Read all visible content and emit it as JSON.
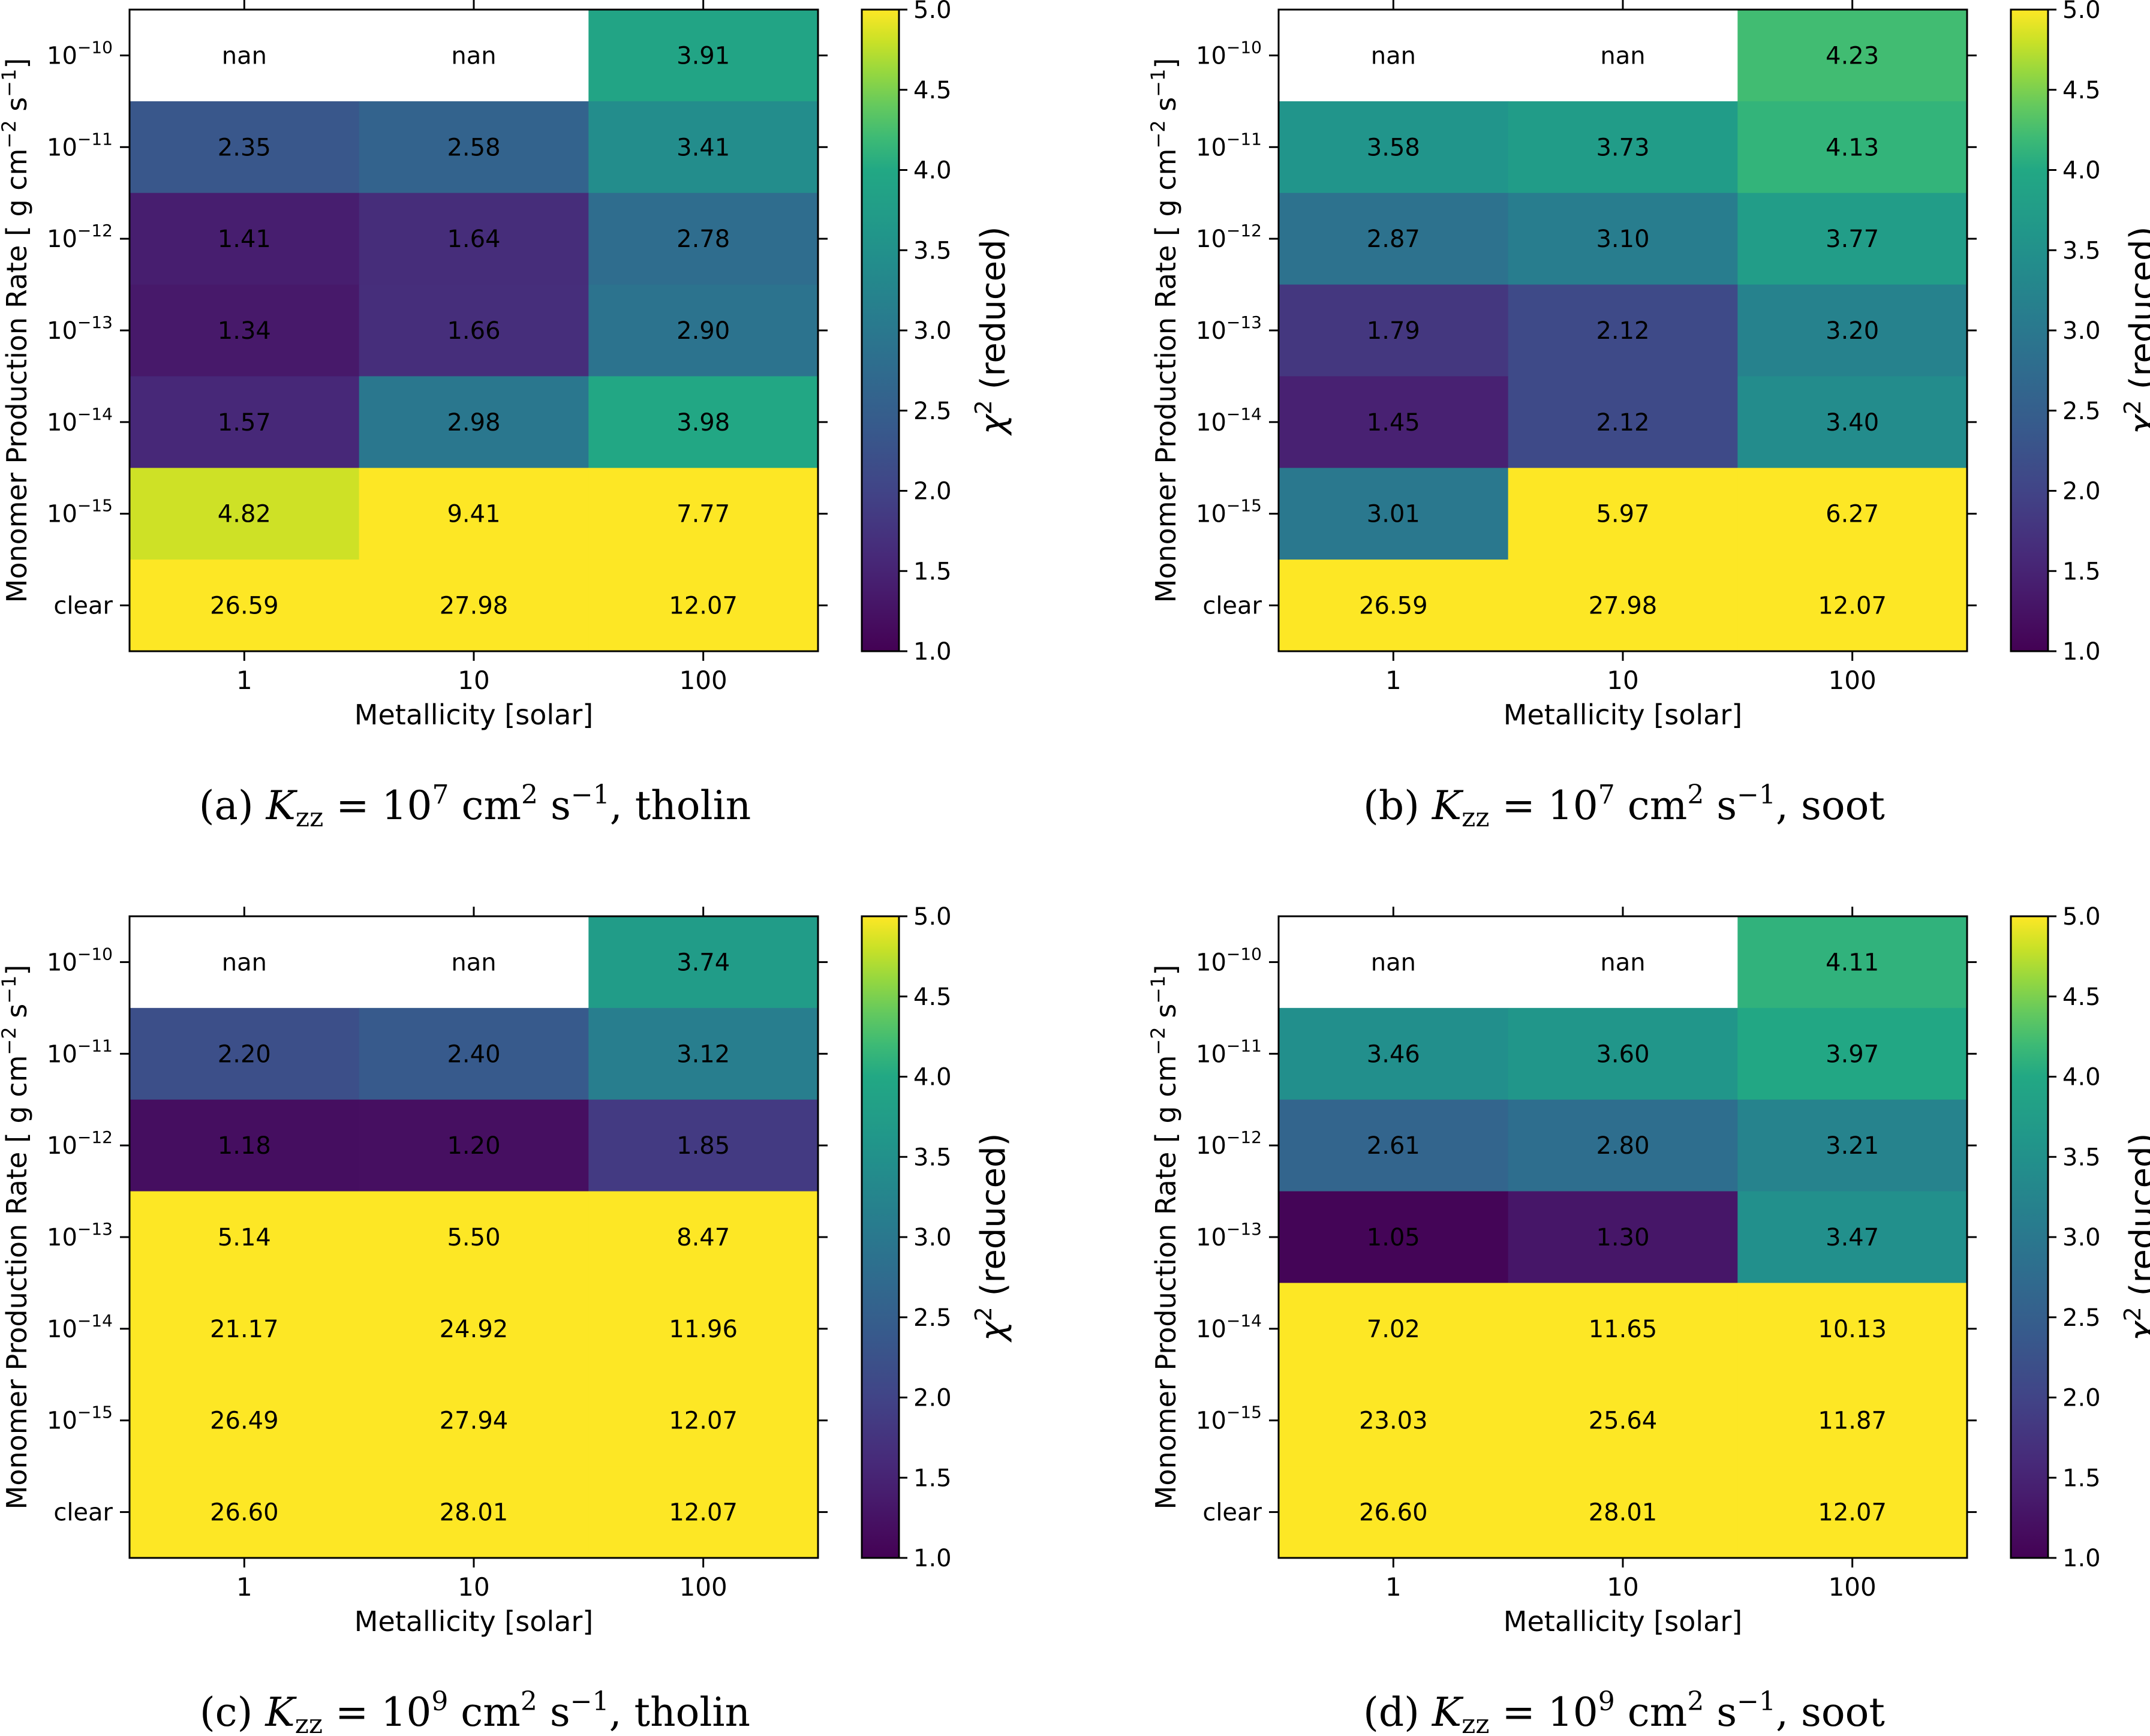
{
  "chart_data": [
    {
      "type": "heatmap",
      "caption": {
        "label": "(a)",
        "math": "K",
        "sub": "zz",
        "eq": "= 10",
        "exp": "7",
        "unit1": "cm",
        "unit1_exp": "2",
        "unit2": "s",
        "unit2_exp": "−1",
        "species": ", tholin"
      },
      "xlabel": "Metallicity [solar]",
      "ylabel": {
        "text": "Monomer Production Rate [ g cm",
        "exp1": "−2",
        "mid": " s",
        "exp2": "−1",
        "close": "]"
      },
      "x_categories": [
        "1",
        "10",
        "100"
      ],
      "y_categories": [
        {
          "base": "10",
          "exp": "−10"
        },
        {
          "base": "10",
          "exp": "−11"
        },
        {
          "base": "10",
          "exp": "−12"
        },
        {
          "base": "10",
          "exp": "−13"
        },
        {
          "base": "10",
          "exp": "−14"
        },
        {
          "base": "10",
          "exp": "−15"
        },
        {
          "base": "clear",
          "exp": ""
        }
      ],
      "cells": [
        [
          "nan",
          "nan",
          "3.91"
        ],
        [
          "2.35",
          "2.58",
          "3.41"
        ],
        [
          "1.41",
          "1.64",
          "2.78"
        ],
        [
          "1.34",
          "1.66",
          "2.90"
        ],
        [
          "1.57",
          "2.98",
          "3.98"
        ],
        [
          "4.82",
          "9.41",
          "7.77"
        ],
        [
          "26.59",
          "27.98",
          "12.07"
        ]
      ],
      "colorbar": {
        "label": "χ",
        "label_exp": "2",
        "label_rest": " (reduced)",
        "vmin": 1.0,
        "vmax": 5.0,
        "ticks": [
          "1.0",
          "1.5",
          "2.0",
          "2.5",
          "3.0",
          "3.5",
          "4.0",
          "4.5",
          "5.0"
        ],
        "colormap": "viridis"
      }
    },
    {
      "type": "heatmap",
      "caption": {
        "label": "(b)",
        "math": "K",
        "sub": "zz",
        "eq": "= 10",
        "exp": "7",
        "unit1": "cm",
        "unit1_exp": "2",
        "unit2": "s",
        "unit2_exp": "−1",
        "species": ", soot"
      },
      "xlabel": "Metallicity [solar]",
      "ylabel": {
        "text": "Monomer Production Rate [ g cm",
        "exp1": "−2",
        "mid": " s",
        "exp2": "−1",
        "close": "]"
      },
      "x_categories": [
        "1",
        "10",
        "100"
      ],
      "y_categories": [
        {
          "base": "10",
          "exp": "−10"
        },
        {
          "base": "10",
          "exp": "−11"
        },
        {
          "base": "10",
          "exp": "−12"
        },
        {
          "base": "10",
          "exp": "−13"
        },
        {
          "base": "10",
          "exp": "−14"
        },
        {
          "base": "10",
          "exp": "−15"
        },
        {
          "base": "clear",
          "exp": ""
        }
      ],
      "cells": [
        [
          "nan",
          "nan",
          "4.23"
        ],
        [
          "3.58",
          "3.73",
          "4.13"
        ],
        [
          "2.87",
          "3.10",
          "3.77"
        ],
        [
          "1.79",
          "2.12",
          "3.20"
        ],
        [
          "1.45",
          "2.12",
          "3.40"
        ],
        [
          "3.01",
          "5.97",
          "6.27"
        ],
        [
          "26.59",
          "27.98",
          "12.07"
        ]
      ],
      "colorbar": {
        "label": "χ",
        "label_exp": "2",
        "label_rest": " (reduced)",
        "vmin": 1.0,
        "vmax": 5.0,
        "ticks": [
          "1.0",
          "1.5",
          "2.0",
          "2.5",
          "3.0",
          "3.5",
          "4.0",
          "4.5",
          "5.0"
        ],
        "colormap": "viridis"
      }
    },
    {
      "type": "heatmap",
      "caption": {
        "label": "(c)",
        "math": "K",
        "sub": "zz",
        "eq": "= 10",
        "exp": "9",
        "unit1": "cm",
        "unit1_exp": "2",
        "unit2": "s",
        "unit2_exp": "−1",
        "species": ", tholin"
      },
      "xlabel": "Metallicity [solar]",
      "ylabel": {
        "text": "Monomer Production Rate [ g cm",
        "exp1": "−2",
        "mid": " s",
        "exp2": "−1",
        "close": "]"
      },
      "x_categories": [
        "1",
        "10",
        "100"
      ],
      "y_categories": [
        {
          "base": "10",
          "exp": "−10"
        },
        {
          "base": "10",
          "exp": "−11"
        },
        {
          "base": "10",
          "exp": "−12"
        },
        {
          "base": "10",
          "exp": "−13"
        },
        {
          "base": "10",
          "exp": "−14"
        },
        {
          "base": "10",
          "exp": "−15"
        },
        {
          "base": "clear",
          "exp": ""
        }
      ],
      "cells": [
        [
          "nan",
          "nan",
          "3.74"
        ],
        [
          "2.20",
          "2.40",
          "3.12"
        ],
        [
          "1.18",
          "1.20",
          "1.85"
        ],
        [
          "5.14",
          "5.50",
          "8.47"
        ],
        [
          "21.17",
          "24.92",
          "11.96"
        ],
        [
          "26.49",
          "27.94",
          "12.07"
        ],
        [
          "26.60",
          "28.01",
          "12.07"
        ]
      ],
      "colorbar": {
        "label": "χ",
        "label_exp": "2",
        "label_rest": " (reduced)",
        "vmin": 1.0,
        "vmax": 5.0,
        "ticks": [
          "1.0",
          "1.5",
          "2.0",
          "2.5",
          "3.0",
          "3.5",
          "4.0",
          "4.5",
          "5.0"
        ],
        "colormap": "viridis"
      }
    },
    {
      "type": "heatmap",
      "caption": {
        "label": "(d)",
        "math": "K",
        "sub": "zz",
        "eq": "= 10",
        "exp": "9",
        "unit1": "cm",
        "unit1_exp": "2",
        "unit2": "s",
        "unit2_exp": "−1",
        "species": ", soot"
      },
      "xlabel": "Metallicity [solar]",
      "ylabel": {
        "text": "Monomer Production Rate [ g cm",
        "exp1": "−2",
        "mid": " s",
        "exp2": "−1",
        "close": "]"
      },
      "x_categories": [
        "1",
        "10",
        "100"
      ],
      "y_categories": [
        {
          "base": "10",
          "exp": "−10"
        },
        {
          "base": "10",
          "exp": "−11"
        },
        {
          "base": "10",
          "exp": "−12"
        },
        {
          "base": "10",
          "exp": "−13"
        },
        {
          "base": "10",
          "exp": "−14"
        },
        {
          "base": "10",
          "exp": "−15"
        },
        {
          "base": "clear",
          "exp": ""
        }
      ],
      "cells": [
        [
          "nan",
          "nan",
          "4.11"
        ],
        [
          "3.46",
          "3.60",
          "3.97"
        ],
        [
          "2.61",
          "2.80",
          "3.21"
        ],
        [
          "1.05",
          "1.30",
          "3.47"
        ],
        [
          "7.02",
          "11.65",
          "10.13"
        ],
        [
          "23.03",
          "25.64",
          "11.87"
        ],
        [
          "26.60",
          "28.01",
          "12.07"
        ]
      ],
      "colorbar": {
        "label": "χ",
        "label_exp": "2",
        "label_rest": " (reduced)",
        "vmin": 1.0,
        "vmax": 5.0,
        "ticks": [
          "1.0",
          "1.5",
          "2.0",
          "2.5",
          "3.0",
          "3.5",
          "4.0",
          "4.5",
          "5.0"
        ],
        "colormap": "viridis"
      }
    }
  ]
}
